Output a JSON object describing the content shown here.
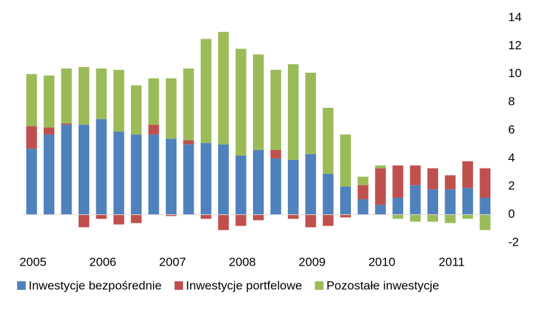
{
  "chart_data": {
    "type": "stacked-bar",
    "categories": [
      "2005",
      null,
      null,
      null,
      "2006",
      null,
      null,
      null,
      "2007",
      null,
      null,
      null,
      "2008",
      null,
      null,
      null,
      "2009",
      null,
      null,
      null,
      "2010",
      null,
      null,
      null,
      "2011",
      null,
      null
    ],
    "series": [
      {
        "name": "Inwestycje bezpośrednie",
        "color": "#4f81bd",
        "values": [
          4.7,
          5.7,
          6.4,
          6.4,
          6.8,
          5.9,
          5.7,
          5.7,
          5.4,
          5.0,
          5.1,
          5.0,
          4.2,
          4.6,
          4.0,
          3.9,
          4.3,
          2.9,
          2.0,
          1.1,
          0.7,
          1.2,
          2.1,
          1.8,
          1.8,
          1.9,
          1.2
        ]
      },
      {
        "name": "Inwestycje portfelowe",
        "color": "#c0504d",
        "values": [
          1.6,
          0.5,
          0.1,
          -0.9,
          -0.3,
          -0.7,
          -0.6,
          0.7,
          -0.1,
          0.3,
          -0.3,
          -1.1,
          -0.8,
          -0.4,
          0.6,
          -0.3,
          -0.9,
          -0.8,
          -0.2,
          1.0,
          2.6,
          2.3,
          1.4,
          1.5,
          1.0,
          1.9,
          2.1
        ]
      },
      {
        "name": "Pozostałe inwestycje",
        "color": "#9bbb59",
        "values": [
          3.7,
          3.7,
          3.9,
          4.1,
          3.6,
          4.4,
          3.5,
          3.3,
          4.3,
          5.1,
          7.4,
          8.0,
          7.6,
          6.8,
          5.7,
          6.8,
          5.8,
          4.7,
          3.7,
          0.6,
          0.2,
          -0.3,
          -0.5,
          -0.5,
          -0.6,
          -0.3,
          -1.1
        ]
      }
    ],
    "ylim": [
      -2,
      14
    ],
    "yticks": [
      -2,
      0,
      2,
      4,
      6,
      8,
      10,
      12,
      14
    ],
    "y_axis_side": "right",
    "legend": "bottom"
  }
}
